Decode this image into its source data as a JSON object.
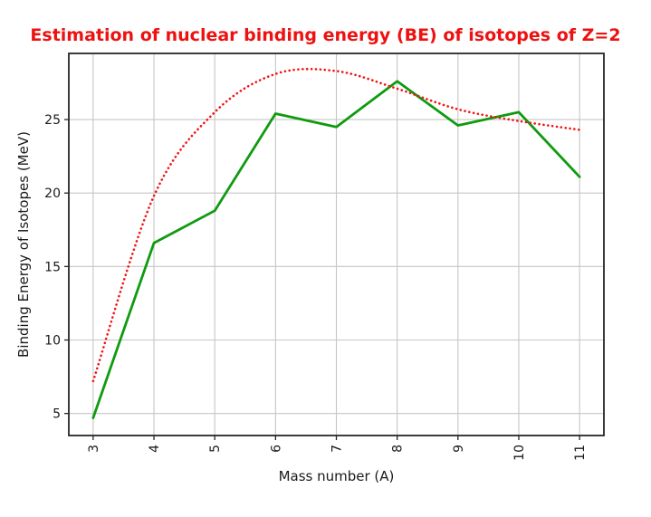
{
  "title_color": "#ee1111",
  "colors": {
    "green_line": "#0f9b0f",
    "red_dotted": "#f21212",
    "grid": "#c6c6c6",
    "axis": "#262626",
    "tick_text": "#1a1a1a"
  },
  "chart_data": {
    "type": "line",
    "title": "Estimation of nuclear binding energy (BE) of isotopes of Z=2",
    "xlabel": "Mass number (A)",
    "ylabel": "Binding Energy of Isotopes (MeV)",
    "x": [
      3,
      4,
      5,
      6,
      7,
      8,
      9,
      10,
      11
    ],
    "series": [
      {
        "name": "green-solid",
        "style": "solid",
        "color": "#0f9b0f",
        "values": [
          4.7,
          16.6,
          18.8,
          25.4,
          24.5,
          27.6,
          24.6,
          25.5,
          21.1
        ]
      },
      {
        "name": "red-dotted",
        "style": "dotted",
        "color": "#f21212",
        "values": [
          7.2,
          19.8,
          25.5,
          28.1,
          28.3,
          27.1,
          25.7,
          24.9,
          24.3
        ]
      }
    ],
    "xlim": [
      2.6,
      11.4
    ],
    "ylim": [
      3.5,
      29.5
    ],
    "xticks": [
      3,
      4,
      5,
      6,
      7,
      8,
      9,
      10,
      11
    ],
    "yticks": [
      5,
      10,
      15,
      20,
      25
    ],
    "x_tick_rotation": 90,
    "grid": true,
    "legend": false
  }
}
